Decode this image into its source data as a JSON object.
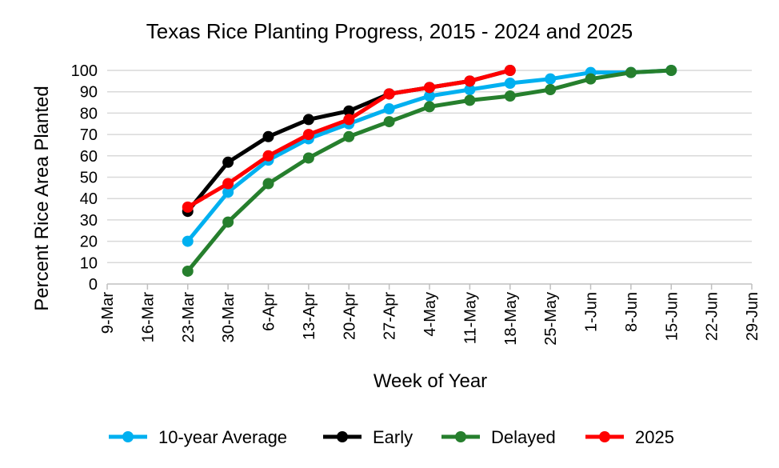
{
  "chart_data": {
    "type": "line",
    "title": "Texas Rice Planting  Progress, 2015 - 2024 and 2025",
    "xlabel": "Week of Year",
    "ylabel": "Percent Rice Area Planted",
    "ylim": [
      0,
      100
    ],
    "yticks": [
      0,
      10,
      20,
      30,
      40,
      50,
      60,
      70,
      80,
      90,
      100
    ],
    "grid": true,
    "legend_position": "bottom",
    "categories": [
      "9-Mar",
      "16-Mar",
      "23-Mar",
      "30-Mar",
      "6-Apr",
      "13-Apr",
      "20-Apr",
      "27-Apr",
      "4-May",
      "11-May",
      "18-May",
      "25-May",
      "1-Jun",
      "8-Jun",
      "15-Jun",
      "22-Jun",
      "29-Jun"
    ],
    "series": [
      {
        "name": "10-year Average",
        "color": "#00B0F0",
        "values": [
          null,
          null,
          20,
          43,
          58,
          68,
          75,
          82,
          88,
          91,
          94,
          96,
          99,
          99,
          100,
          null,
          null
        ]
      },
      {
        "name": "Early",
        "color": "#000000",
        "values": [
          null,
          null,
          34,
          57,
          69,
          77,
          81,
          89,
          92,
          95,
          100,
          null,
          null,
          null,
          null,
          null,
          null
        ]
      },
      {
        "name": "Delayed",
        "color": "#267F2D",
        "values": [
          null,
          null,
          6,
          29,
          47,
          59,
          69,
          76,
          83,
          86,
          88,
          91,
          96,
          99,
          100,
          null,
          null
        ]
      },
      {
        "name": "2025",
        "color": "#FF0000",
        "values": [
          null,
          null,
          36,
          47,
          60,
          70,
          77,
          89,
          92,
          95,
          100,
          null,
          null,
          null,
          null,
          null,
          null
        ]
      }
    ],
    "draw_order": [
      0,
      1,
      2,
      3
    ]
  }
}
